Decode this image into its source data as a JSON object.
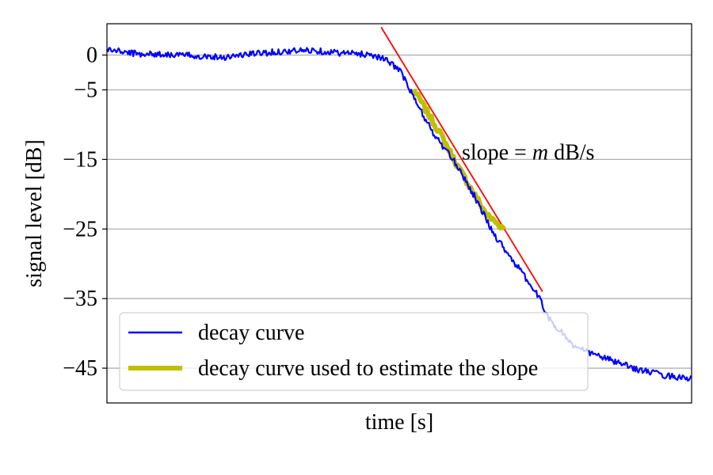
{
  "chart_data": {
    "type": "line",
    "xlabel": "time [s]",
    "ylabel": "signal level [dB]",
    "ylim": [
      -50,
      4.5
    ],
    "xlim": [
      0,
      1
    ],
    "x_ticks_shown": false,
    "yticks": [
      0,
      -5,
      -15,
      -25,
      -35,
      -45
    ],
    "ytick_labels": [
      "0",
      "−5",
      "−15",
      "−25",
      "−35",
      "−45"
    ],
    "grid": "horizontal",
    "legend_position": "lower-left",
    "colors": {
      "decay": "#0000ff",
      "fit_region": "#bfbf00",
      "slope_line": "#ff0000",
      "grid": "#b0b0b0"
    },
    "series": [
      {
        "name": "decay curve",
        "x": [
          0.0,
          0.05,
          0.1,
          0.15,
          0.2,
          0.25,
          0.3,
          0.35,
          0.4,
          0.45,
          0.47,
          0.5,
          0.53,
          0.56,
          0.6,
          0.63,
          0.66,
          0.69,
          0.72,
          0.74,
          0.76,
          0.78,
          0.8,
          0.85,
          0.9,
          0.95,
          1.0
        ],
        "y": [
          0.8,
          0.2,
          0.1,
          -0.1,
          -0.3,
          0.2,
          0.5,
          0.7,
          0.3,
          0.1,
          -0.4,
          -2.0,
          -7.0,
          -11.5,
          -16.0,
          -20.5,
          -25.5,
          -29.0,
          -32.5,
          -35.0,
          -38.5,
          -40.0,
          -42.0,
          -43.5,
          -45.0,
          -46.0,
          -46.5
        ]
      },
      {
        "name": "decay curve used to estimate the slope",
        "x": [
          0.525,
          0.55,
          0.575,
          0.6,
          0.625,
          0.65,
          0.68
        ],
        "y": [
          -5.0,
          -8.5,
          -12.0,
          -16.0,
          -19.5,
          -23.0,
          -25.0
        ]
      }
    ],
    "fit_line": {
      "x": [
        0.469,
        0.745
      ],
      "y": [
        4.0,
        -34.0
      ]
    },
    "annotation": {
      "prefix": "slope = ",
      "var": "m",
      "suffix": " dB/s",
      "x": 0.607,
      "y": -14.0
    }
  }
}
